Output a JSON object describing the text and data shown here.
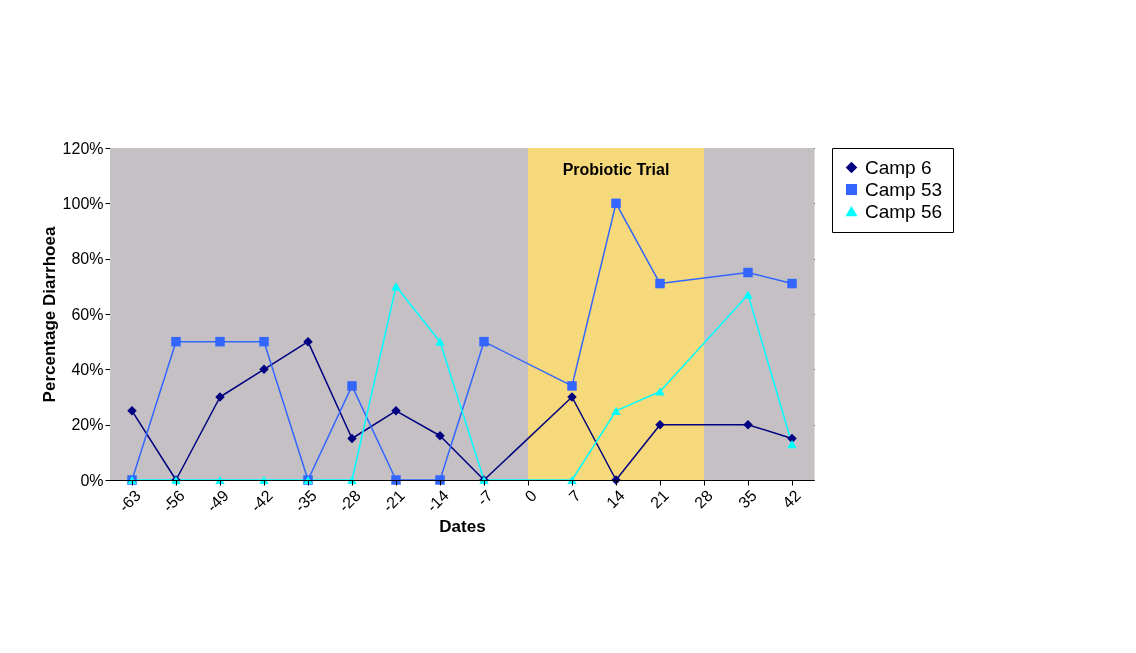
{
  "chart_data": {
    "type": "line",
    "xlabel": "Dates",
    "ylabel": "Percentage Diarrhoea",
    "categories": [
      "-63",
      "-56",
      "-49",
      "-42",
      "-35",
      "-28",
      "-21",
      "-14",
      "-7",
      "0",
      "7",
      "14",
      "21",
      "28",
      "35",
      "42"
    ],
    "series": [
      {
        "name": "Camp 6",
        "color": "#000080",
        "marker": "diamond",
        "values": [
          25,
          0,
          30,
          40,
          50,
          15,
          25,
          16,
          0,
          null,
          30,
          0,
          20,
          null,
          20,
          15
        ]
      },
      {
        "name": "Camp 53",
        "color": "#3366ff",
        "marker": "square",
        "values": [
          0,
          50,
          50,
          50,
          0,
          34,
          0,
          0,
          50,
          null,
          34,
          100,
          71,
          null,
          75,
          71
        ]
      },
      {
        "name": "Camp 56",
        "color": "#00ffff",
        "marker": "triangle",
        "values": [
          0,
          0,
          0,
          0,
          0,
          0,
          70,
          50,
          0,
          null,
          0,
          25,
          32,
          null,
          67,
          13
        ]
      }
    ],
    "ylim": [
      0,
      120
    ],
    "yticks": [
      {
        "value": 0,
        "label": "0%"
      },
      {
        "value": 20,
        "label": "20%"
      },
      {
        "value": 40,
        "label": "40%"
      },
      {
        "value": 60,
        "label": "60%"
      },
      {
        "value": 80,
        "label": "80%"
      },
      {
        "value": 100,
        "label": "100%"
      },
      {
        "value": 120,
        "label": "120%"
      }
    ],
    "bands": [
      {
        "axis": "x",
        "from": "0",
        "to": "28",
        "label": "Probiotic Trial",
        "color": "#f5d97a"
      }
    ],
    "grid": "y",
    "legend": "right"
  }
}
